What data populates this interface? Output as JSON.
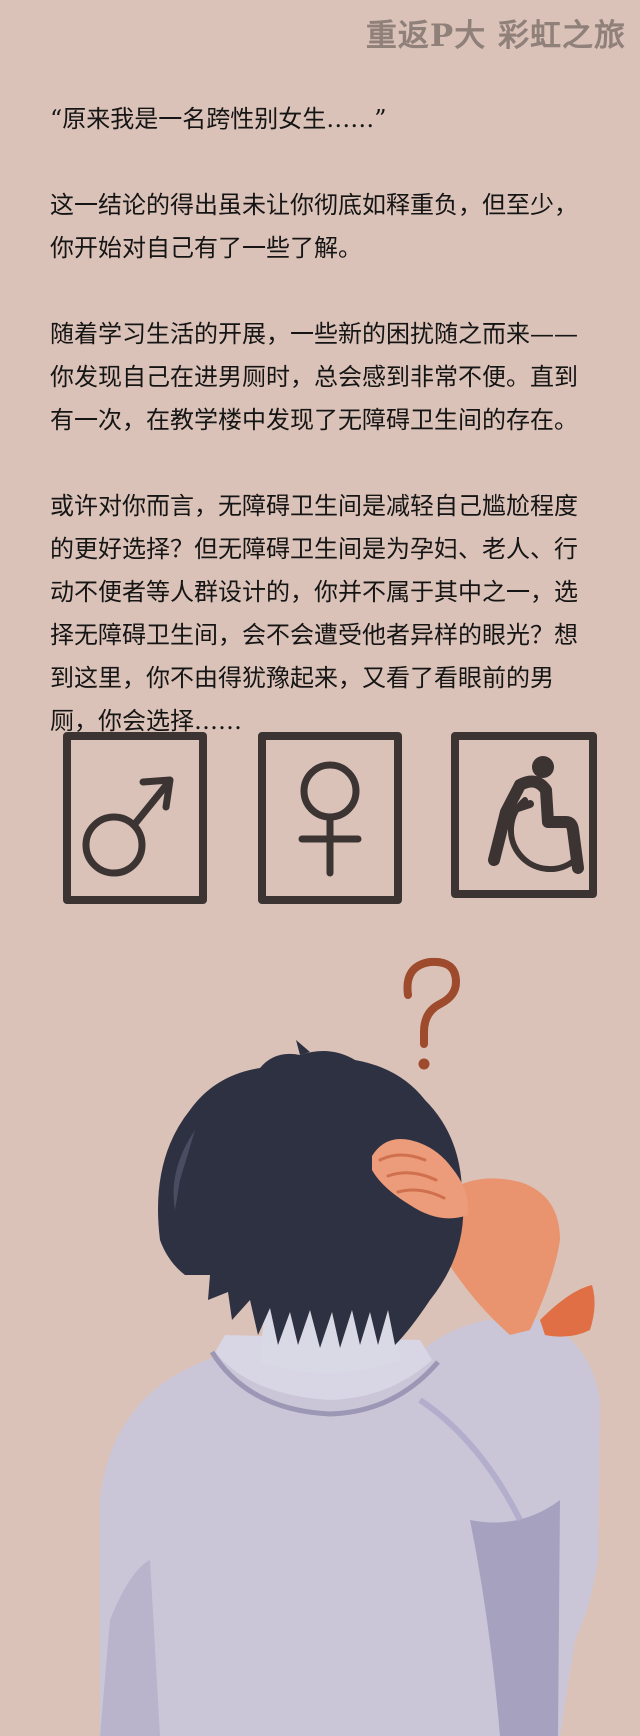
{
  "header": {
    "title": "重返P大 彩虹之旅"
  },
  "story": {
    "paragraphs": [
      "“原来我是一名跨性别女生……”",
      "这一结论的得出虽未让你彻底如释重负，但至少，你开始对自己有了一些了解。",
      "随着学习生活的开展，一些新的困扰随之而来——你发现自己在进男厕时，总会感到非常不便。直到有一次，在教学楼中发现了无障碍卫生间的存在。",
      "或许对你而言，无障碍卫生间是减轻自己尴尬程度的更好选择？但无障碍卫生间是为孕妇、老人、行动不便者等人群设计的，你并不属于其中之一，选择无障碍卫生间，会不会遭受他者异样的眼光？想到这里，你不由得犹豫起来，又看了看眼前的男厕，你会选择……"
    ]
  },
  "choices": [
    {
      "icon": "male-symbol-icon"
    },
    {
      "icon": "female-symbol-icon"
    },
    {
      "icon": "wheelchair-icon"
    }
  ],
  "illustration": {
    "icons": [
      "question-mark-icon",
      "person-scratching-head-icon"
    ]
  },
  "colors": {
    "background": "#dbc2b8",
    "header_text": "#8f807a",
    "icon_stroke": "#3b3432",
    "question_mark": "#9e4a2c",
    "hair": "#2e3142",
    "skin": "#e9946f",
    "shirt": "#cac6d8"
  }
}
